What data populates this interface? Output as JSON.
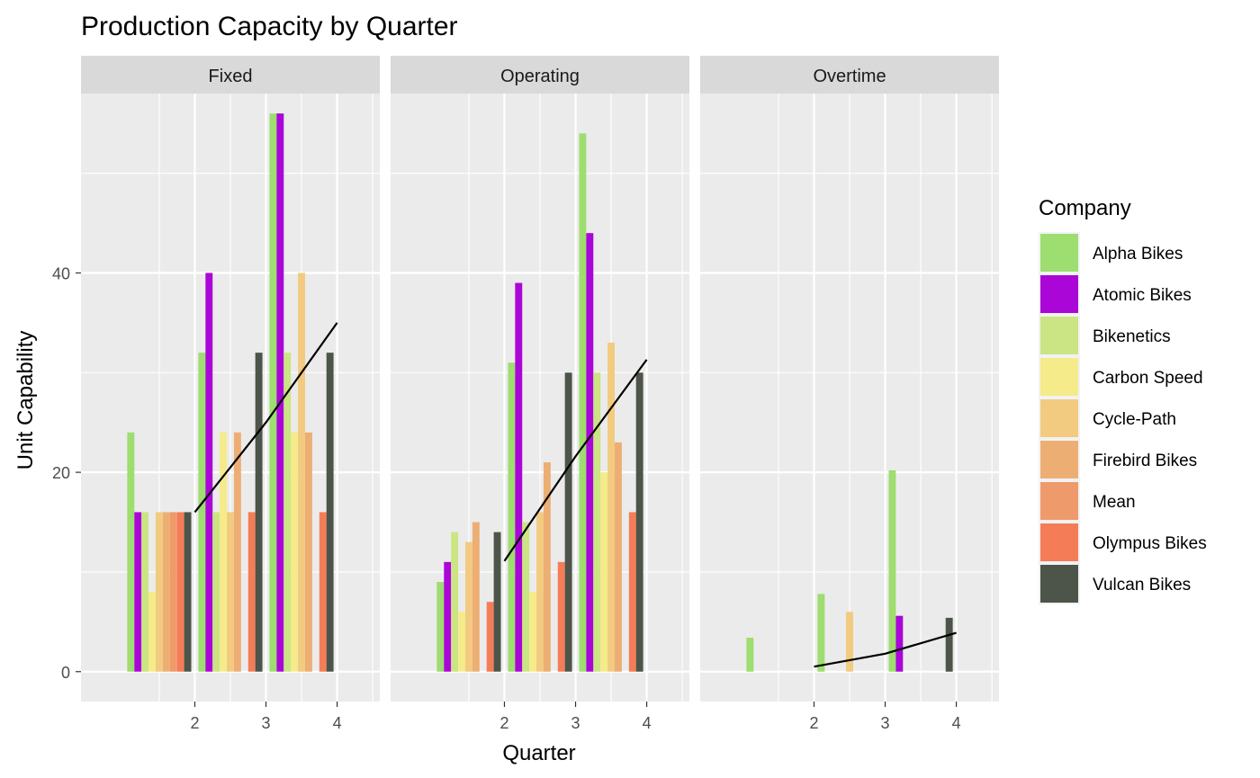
{
  "chart_data": {
    "type": "bar",
    "title": "Production Capacity by Quarter",
    "xlabel": "Quarter",
    "ylabel": "Unit Capability",
    "x_categories": [
      "2",
      "3",
      "4"
    ],
    "ylim": [
      -3,
      58
    ],
    "y_ticks": [
      0,
      20,
      40
    ],
    "grid": true,
    "legend": {
      "title": "Company",
      "position": "right",
      "entries": [
        {
          "name": "Alpha Bikes",
          "color": "#9edd6f"
        },
        {
          "name": "Atomic Bikes",
          "color": "#aa06d8"
        },
        {
          "name": "Bikenetics",
          "color": "#cbe484"
        },
        {
          "name": "Carbon Speed",
          "color": "#f5eb8a"
        },
        {
          "name": "Cycle-Path",
          "color": "#f2cb80"
        },
        {
          "name": "Firebird Bikes",
          "color": "#edae74"
        },
        {
          "name": "Mean",
          "color": "#ef9a6b"
        },
        {
          "name": "Olympus Bikes",
          "color": "#f47d58"
        },
        {
          "name": "Vulcan Bikes",
          "color": "#4d5449"
        }
      ]
    },
    "panels": [
      {
        "name": "Fixed",
        "series": [
          {
            "name": "Alpha Bikes",
            "values": [
              24,
              32,
              56
            ]
          },
          {
            "name": "Atomic Bikes",
            "values": [
              16,
              40,
              56
            ]
          },
          {
            "name": "Bikenetics",
            "values": [
              16,
              16,
              32
            ]
          },
          {
            "name": "Carbon Speed",
            "values": [
              8,
              24,
              24
            ]
          },
          {
            "name": "Cycle-Path",
            "values": [
              16,
              16,
              40
            ]
          },
          {
            "name": "Firebird Bikes",
            "values": [
              16,
              24,
              24
            ]
          },
          {
            "name": "Mean",
            "values": [
              16,
              0,
              0
            ]
          },
          {
            "name": "Olympus Bikes",
            "values": [
              16,
              16,
              16
            ]
          },
          {
            "name": "Vulcan Bikes",
            "values": [
              16,
              32,
              32
            ]
          }
        ],
        "mean_line": [
          16,
          25,
          35
        ]
      },
      {
        "name": "Operating",
        "series": [
          {
            "name": "Alpha Bikes",
            "values": [
              9,
              31,
              54
            ]
          },
          {
            "name": "Atomic Bikes",
            "values": [
              11,
              39,
              44
            ]
          },
          {
            "name": "Bikenetics",
            "values": [
              14,
              15,
              30
            ]
          },
          {
            "name": "Carbon Speed",
            "values": [
              6,
              8,
              20
            ]
          },
          {
            "name": "Cycle-Path",
            "values": [
              13,
              16,
              33
            ]
          },
          {
            "name": "Firebird Bikes",
            "values": [
              15,
              21,
              23
            ]
          },
          {
            "name": "Mean",
            "values": [
              0,
              0,
              0
            ]
          },
          {
            "name": "Olympus Bikes",
            "values": [
              7,
              11,
              16
            ]
          },
          {
            "name": "Vulcan Bikes",
            "values": [
              14,
              30,
              30
            ]
          }
        ],
        "mean_line": [
          11.1,
          21.6,
          31.3
        ]
      },
      {
        "name": "Overtime",
        "series": [
          {
            "name": "Alpha Bikes",
            "values": [
              3.4,
              7.8,
              20.2
            ]
          },
          {
            "name": "Atomic Bikes",
            "values": [
              0,
              0,
              5.6
            ]
          },
          {
            "name": "Bikenetics",
            "values": [
              0,
              0,
              0
            ]
          },
          {
            "name": "Carbon Speed",
            "values": [
              0,
              0,
              0
            ]
          },
          {
            "name": "Cycle-Path",
            "values": [
              0,
              6,
              0
            ]
          },
          {
            "name": "Firebird Bikes",
            "values": [
              0,
              0,
              0
            ]
          },
          {
            "name": "Mean",
            "values": [
              0,
              0,
              0
            ]
          },
          {
            "name": "Olympus Bikes",
            "values": [
              0,
              0,
              0
            ]
          },
          {
            "name": "Vulcan Bikes",
            "values": [
              0,
              0,
              5.4
            ]
          }
        ],
        "mean_line": [
          0.5,
          1.8,
          3.9
        ]
      }
    ]
  }
}
